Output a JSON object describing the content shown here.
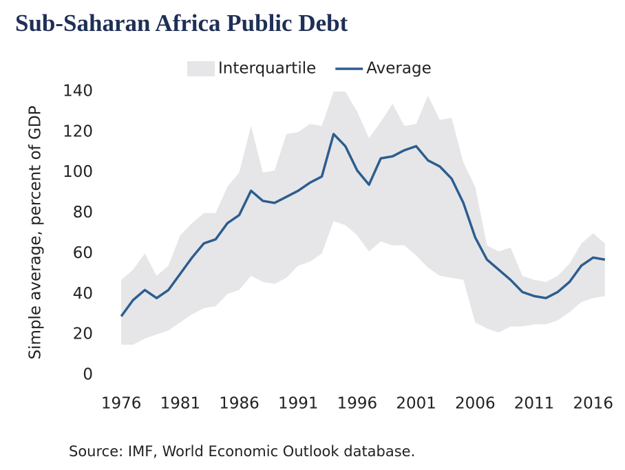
{
  "chart_data": {
    "type": "line",
    "title": "Sub-Saharan Africa Public Debt",
    "y_label": "Simple average, percent of GDP",
    "source": "Source: IMF, World Economic Outlook database.",
    "x": [
      1976,
      1977,
      1978,
      1979,
      1980,
      1981,
      1982,
      1983,
      1984,
      1985,
      1986,
      1987,
      1988,
      1989,
      1990,
      1991,
      1992,
      1993,
      1994,
      1995,
      1996,
      1997,
      1998,
      1999,
      2000,
      2001,
      2002,
      2003,
      2004,
      2005,
      2006,
      2007,
      2008,
      2009,
      2010,
      2011,
      2012,
      2013,
      2014,
      2015,
      2016,
      2017
    ],
    "xlim": [
      1975,
      2018
    ],
    "xticks": [
      1976,
      1981,
      1986,
      1991,
      1996,
      2001,
      2006,
      2011,
      2016
    ],
    "ylim": [
      0,
      140
    ],
    "yticks": [
      0,
      20,
      40,
      60,
      80,
      100,
      120,
      140
    ],
    "series": [
      {
        "name": "Interquartile",
        "color": "#e6e6e8",
        "kind": "band",
        "upper": [
          47,
          52,
          60,
          49,
          54,
          69,
          75,
          80,
          80,
          93,
          100,
          123,
          100,
          101,
          119,
          120,
          124,
          123,
          140,
          140,
          130,
          117,
          125,
          134,
          123,
          124,
          138,
          126,
          127,
          105,
          93,
          64,
          61,
          63,
          49,
          47,
          46,
          49,
          55,
          65,
          70,
          65
        ],
        "lower": [
          15,
          15,
          18,
          20,
          22,
          26,
          30,
          33,
          34,
          40,
          42,
          49,
          46,
          45,
          48,
          54,
          56,
          60,
          76,
          74,
          69,
          61,
          66,
          64,
          64,
          59,
          53,
          49,
          48,
          47,
          26,
          23,
          21,
          24,
          24,
          25,
          25,
          27,
          31,
          36,
          38,
          39
        ]
      },
      {
        "name": "Average",
        "color": "#2c5d8f",
        "kind": "line",
        "values": [
          29,
          37,
          42,
          38,
          42,
          50,
          58,
          65,
          67,
          75,
          79,
          91,
          86,
          85,
          88,
          91,
          95,
          98,
          119,
          113,
          101,
          94,
          107,
          108,
          111,
          113,
          106,
          103,
          97,
          85,
          68,
          57,
          52,
          47,
          41,
          39,
          38,
          41,
          46,
          54,
          58,
          57
        ]
      }
    ]
  }
}
